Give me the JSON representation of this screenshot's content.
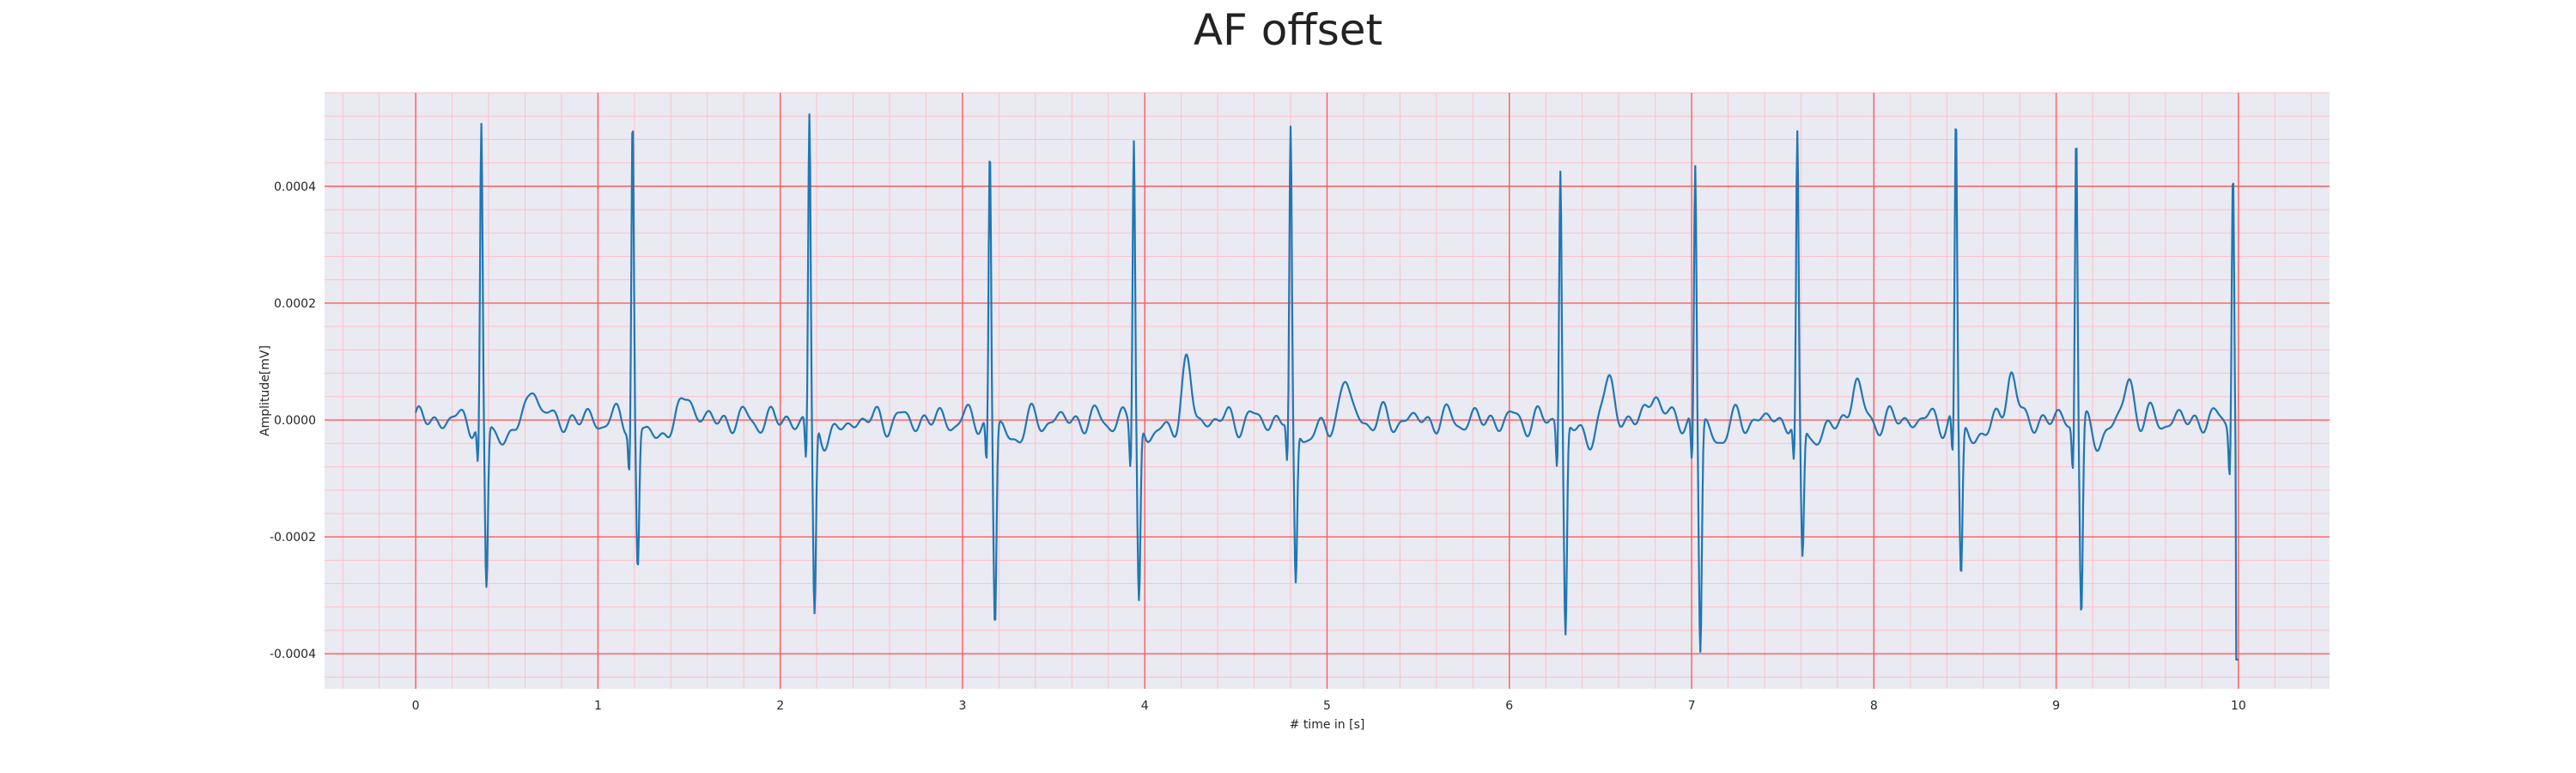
{
  "chart_data": {
    "type": "line",
    "title": "AF offset",
    "xlabel": "# time in [s]",
    "ylabel": "Amplitude[mV]",
    "xlim": [
      -0.5,
      10.5
    ],
    "ylim": [
      -0.00046,
      0.00056
    ],
    "x_ticks": [
      0,
      1,
      2,
      3,
      4,
      5,
      6,
      7,
      8,
      9,
      10
    ],
    "x_tick_labels": [
      "0",
      "1",
      "2",
      "3",
      "4",
      "5",
      "6",
      "7",
      "8",
      "9",
      "10"
    ],
    "y_ticks": [
      -0.0004,
      -0.0002,
      0.0,
      0.0002,
      0.0004
    ],
    "y_tick_labels": [
      "-0.0004",
      "-0.0002",
      "0.0000",
      "0.0002",
      "0.0004"
    ],
    "grid": "major and minor (red)",
    "colors": {
      "line": "#1f77b4",
      "background": "#eaeaf2",
      "major_grid": "#ff5a5a",
      "minor_grid": "#ffc0c8"
    },
    "beats": [
      {
        "t": 0.36,
        "r": 0.00049,
        "s": -0.00029
      },
      {
        "t": 1.19,
        "r": 0.00052,
        "s": -0.00025
      },
      {
        "t": 2.16,
        "r": 0.000515,
        "s": -0.00034
      },
      {
        "t": 3.15,
        "r": 0.000465,
        "s": -0.000345
      },
      {
        "t": 3.94,
        "r": 0.000485,
        "s": -0.00031
      },
      {
        "t": 4.8,
        "r": 0.000485,
        "s": -0.00028
      },
      {
        "t": 6.28,
        "r": 0.00044,
        "s": -0.00036
      },
      {
        "t": 7.02,
        "r": 0.00044,
        "s": -0.00039
      },
      {
        "t": 7.58,
        "r": 0.00047,
        "s": -0.00024
      },
      {
        "t": 8.45,
        "r": 0.00051,
        "s": -0.000265
      },
      {
        "t": 9.11,
        "r": 0.000505,
        "s": -0.00033
      },
      {
        "t": 9.97,
        "r": 0.00045,
        "s": -0.00041
      }
    ],
    "t_waves": [
      {
        "t": 0.65,
        "a": 7e-05
      },
      {
        "t": 1.5,
        "a": 5e-05
      },
      {
        "t": 4.23,
        "a": 9e-05
      },
      {
        "t": 5.1,
        "a": 7e-05
      },
      {
        "t": 6.55,
        "a": 7e-05
      },
      {
        "t": 6.8,
        "a": 6e-05
      },
      {
        "t": 7.9,
        "a": 7e-05
      },
      {
        "t": 8.75,
        "a": 9e-05
      },
      {
        "t": 9.4,
        "a": 7e-05
      }
    ]
  }
}
